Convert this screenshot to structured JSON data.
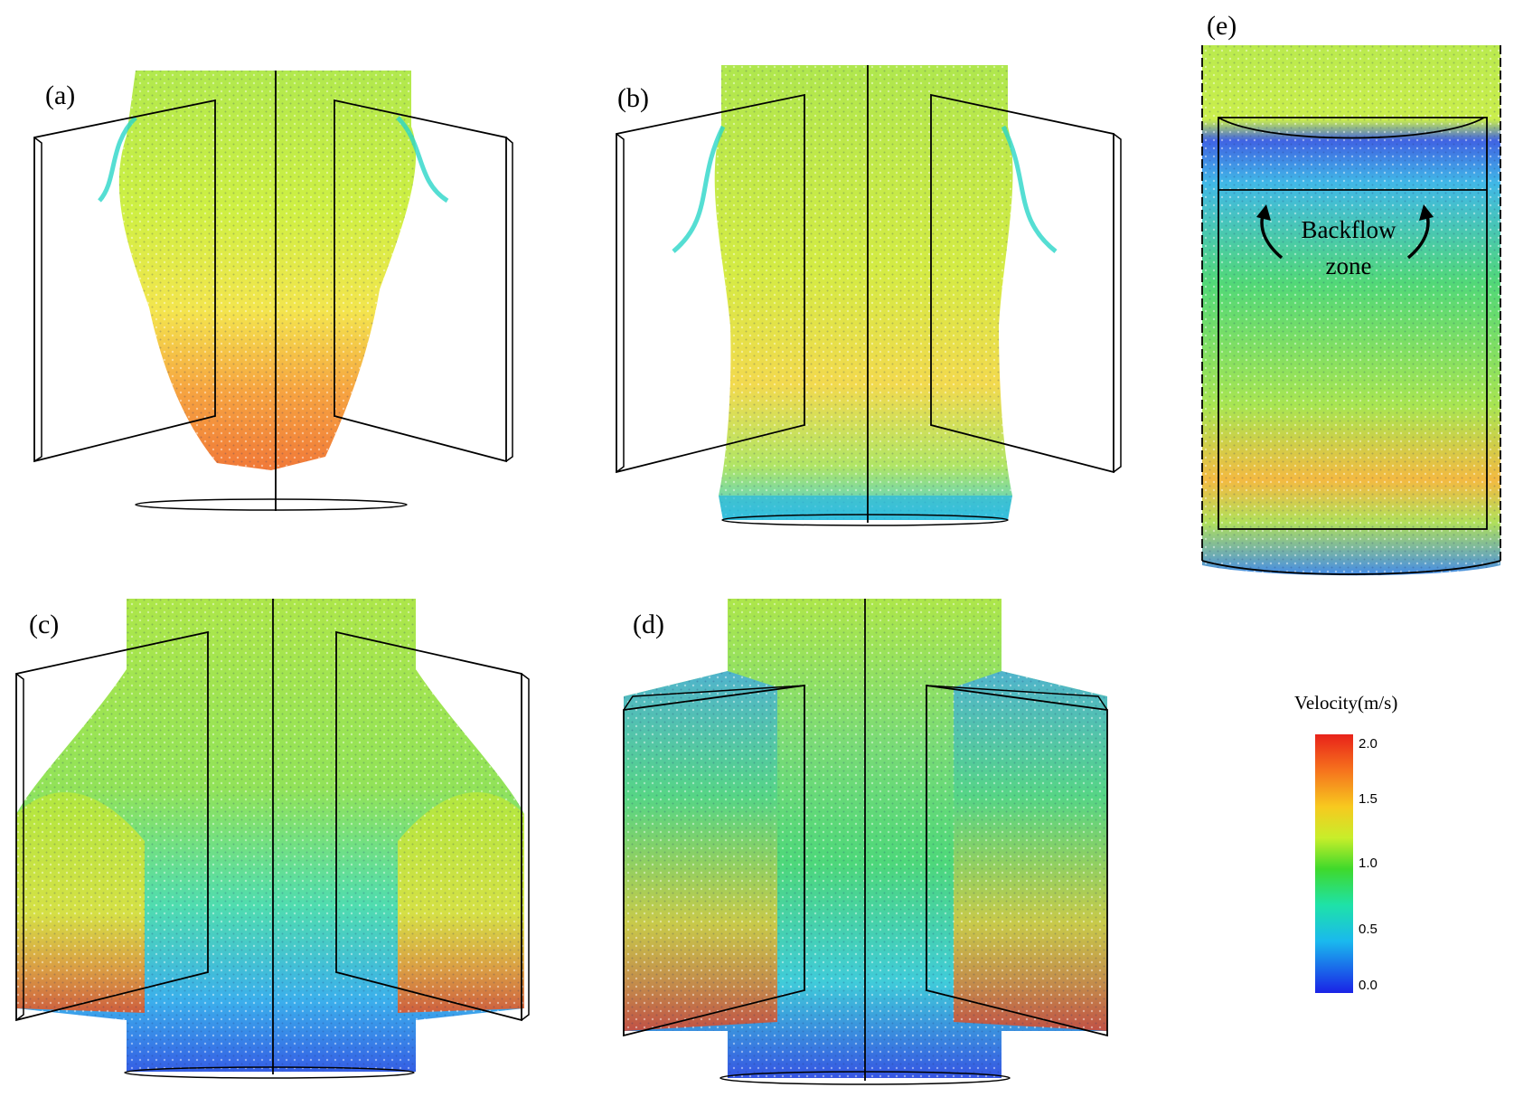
{
  "panels": [
    {
      "id": "a",
      "label": "(a)"
    },
    {
      "id": "b",
      "label": "(b)"
    },
    {
      "id": "c",
      "label": "(c)"
    },
    {
      "id": "d",
      "label": "(d)"
    },
    {
      "id": "e",
      "label": "(e)"
    }
  ],
  "annotation": {
    "line1": "Backflow",
    "line2": "zone"
  },
  "legend": {
    "title": "Velocity(m/s)",
    "ticks": [
      "2.0",
      "1.5",
      "1.0",
      "0.5",
      "0.0"
    ],
    "colors": [
      "#e8221a",
      "#f7a81f",
      "#f3ee2a",
      "#8fe02a",
      "#25d12c",
      "#1fdcc8",
      "#1a8ff0",
      "#1a2bea"
    ]
  }
}
